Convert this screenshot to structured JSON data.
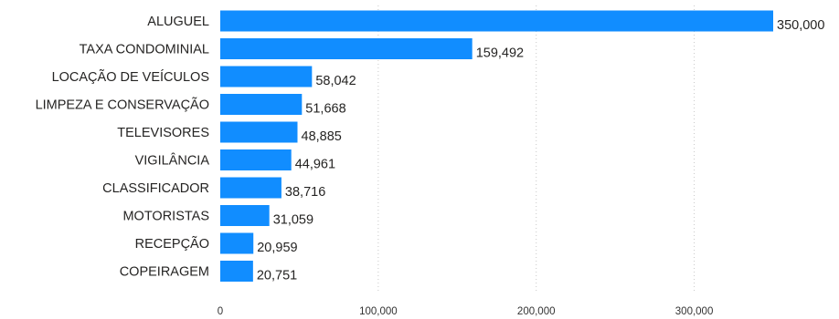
{
  "chart_data": {
    "type": "bar",
    "orientation": "horizontal",
    "categories": [
      "ALUGUEL",
      "TAXA CONDOMINIAL",
      "LOCAÇÃO DE VEÍCULOS",
      "LIMPEZA E CONSERVAÇÃO",
      "TELEVISORES",
      "VIGILÂNCIA",
      "CLASSIFICADOR",
      "MOTORISTAS",
      "RECEPÇÃO",
      "COPEIRAGEM"
    ],
    "values": [
      350000,
      159492,
      58042,
      51668,
      48885,
      44961,
      38716,
      31059,
      20959,
      20751
    ],
    "value_labels": [
      "350,000",
      "159,492",
      "58,042",
      "51,668",
      "48,885",
      "44,961",
      "38,716",
      "31,059",
      "20,959",
      "20,751"
    ],
    "x_ticks": [
      0,
      100000,
      200000,
      300000
    ],
    "x_tick_labels": [
      "0",
      "100,000",
      "200,000",
      "300,000"
    ],
    "xlim": [
      0,
      350000
    ],
    "grid": "vertical dotted",
    "bar_color": "#118DFF"
  }
}
